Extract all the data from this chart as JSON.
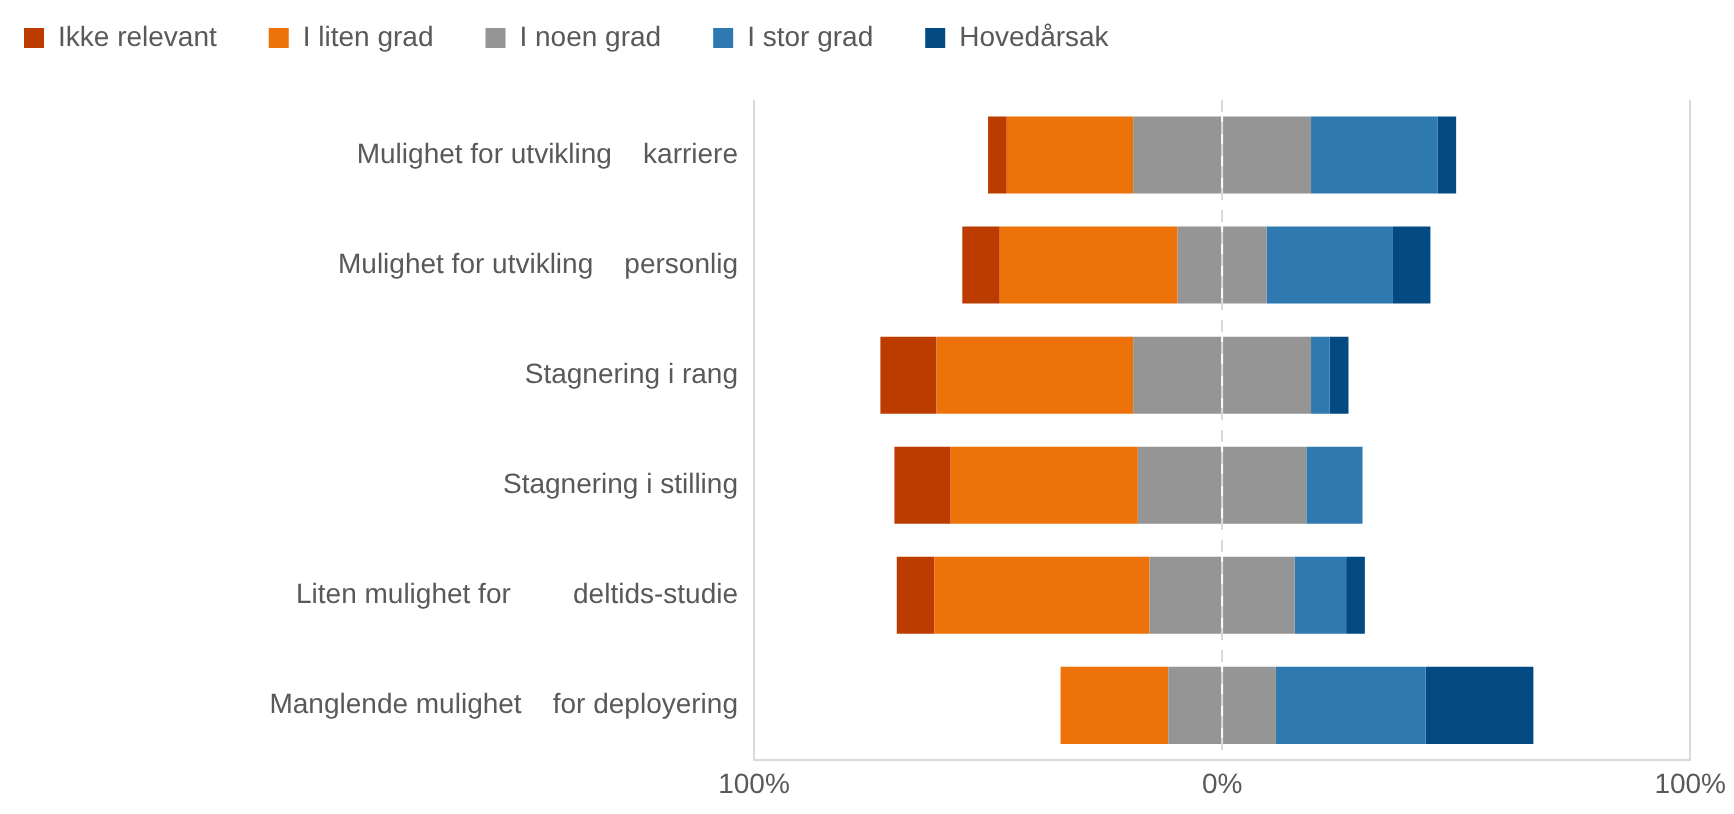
{
  "chart_data": {
    "type": "bar",
    "orientation": "horizontal",
    "stacked": true,
    "categories": [
      "Mulighet for utvikling    karriere",
      "Mulighet for utvikling    personlig",
      "Stagnering i rang",
      "Stagnering i stilling",
      "Liten mulighet for        deltids-studie",
      "Manglende mulighet    for deployering"
    ],
    "series": [
      {
        "name": "I noen grad",
        "color": "#959595",
        "values": [
          -19,
          -9.5,
          -19,
          -18,
          -15.5,
          -11.5
        ]
      },
      {
        "name": "I liten grad",
        "color": "#ec7209",
        "values": [
          -27,
          -38,
          -42,
          -40,
          -46,
          -23
        ]
      },
      {
        "name": "Ikke relevant",
        "color": "#bc3c00",
        "values": [
          -4,
          -8,
          -12,
          -12,
          -8,
          0
        ]
      },
      {
        "color": "#959595",
        "values": [
          19,
          9.5,
          19,
          18,
          15.5,
          11.5
        ]
      },
      {
        "name": "I stor grad",
        "color": "#2e79b0",
        "values": [
          27,
          27,
          4,
          12,
          11,
          32
        ]
      },
      {
        "name": "Hovedårsak",
        "color": "#044a82",
        "values": [
          4,
          8,
          4,
          0,
          4,
          23
        ]
      }
    ],
    "xlim": [
      -100,
      100
    ],
    "xticks": [
      {
        "value": -100,
        "label": "100%"
      },
      {
        "value": 0,
        "label": "0%"
      },
      {
        "value": 100,
        "label": "100%"
      }
    ],
    "grid": "x",
    "legend": "top left"
  }
}
